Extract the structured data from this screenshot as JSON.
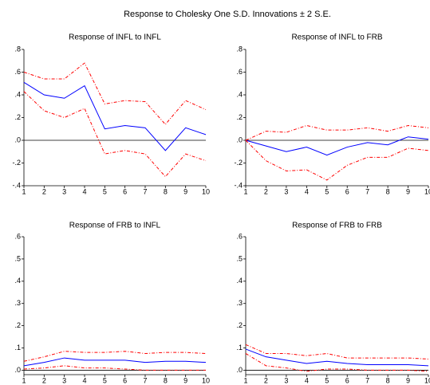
{
  "title": "Response to Cholesky One S.D. Innovations ± 2 S.E.",
  "chart_data": [
    {
      "type": "line",
      "title": "Response of INFL to INFL",
      "x": [
        1,
        2,
        3,
        4,
        5,
        6,
        7,
        8,
        9,
        10
      ],
      "xlim": [
        1,
        10
      ],
      "xticks": [
        1,
        2,
        3,
        4,
        5,
        6,
        7,
        8,
        9,
        10
      ],
      "ylim": [
        -0.4,
        0.8
      ],
      "yticks": [
        {
          "value": -0.4,
          "label": "-.4"
        },
        {
          "value": -0.2,
          "label": "-.2"
        },
        {
          "value": 0,
          "label": ".0"
        },
        {
          "value": 0.2,
          "label": ".2"
        },
        {
          "value": 0.4,
          "label": ".4"
        },
        {
          "value": 0.6,
          "label": ".6"
        },
        {
          "value": 0.8,
          "label": ".8"
        }
      ],
      "zero_line": true,
      "series": [
        {
          "color": "#0000ff",
          "dashed": false,
          "values": [
            0.51,
            0.4,
            0.37,
            0.48,
            0.1,
            0.13,
            0.11,
            -0.09,
            0.11,
            0.05
          ]
        },
        {
          "color": "#ff0000",
          "dashed": true,
          "values": [
            0.6,
            0.54,
            0.54,
            0.68,
            0.32,
            0.35,
            0.34,
            0.14,
            0.35,
            0.27
          ]
        },
        {
          "color": "#ff0000",
          "dashed": true,
          "values": [
            0.43,
            0.26,
            0.2,
            0.28,
            -0.12,
            -0.09,
            -0.12,
            -0.32,
            -0.12,
            -0.18
          ]
        }
      ]
    },
    {
      "type": "line",
      "title": "Response of INFL to FRB",
      "x": [
        1,
        2,
        3,
        4,
        5,
        6,
        7,
        8,
        9,
        10
      ],
      "xlim": [
        1,
        10
      ],
      "xticks": [
        1,
        2,
        3,
        4,
        5,
        6,
        7,
        8,
        9,
        10
      ],
      "ylim": [
        -0.4,
        0.8
      ],
      "yticks": [
        {
          "value": -0.4,
          "label": "-.4"
        },
        {
          "value": -0.2,
          "label": "-.2"
        },
        {
          "value": 0,
          "label": ".0"
        },
        {
          "value": 0.2,
          "label": ".2"
        },
        {
          "value": 0.4,
          "label": ".4"
        },
        {
          "value": 0.6,
          "label": ".6"
        },
        {
          "value": 0.8,
          "label": ".8"
        }
      ],
      "zero_line": true,
      "series": [
        {
          "color": "#0000ff",
          "dashed": false,
          "values": [
            0,
            -0.05,
            -0.1,
            -0.06,
            -0.13,
            -0.06,
            -0.02,
            -0.04,
            0.03,
            0.01
          ]
        },
        {
          "color": "#ff0000",
          "dashed": true,
          "values": [
            0,
            0.08,
            0.07,
            0.13,
            0.09,
            0.09,
            0.11,
            0.08,
            0.13,
            0.11
          ]
        },
        {
          "color": "#ff0000",
          "dashed": true,
          "values": [
            0,
            -0.18,
            -0.27,
            -0.26,
            -0.35,
            -0.22,
            -0.15,
            -0.15,
            -0.07,
            -0.09
          ]
        }
      ]
    },
    {
      "type": "line",
      "title": "Response of FRB to INFL",
      "x": [
        1,
        2,
        3,
        4,
        5,
        6,
        7,
        8,
        9,
        10
      ],
      "xlim": [
        1,
        10
      ],
      "xticks": [
        1,
        2,
        3,
        4,
        5,
        6,
        7,
        8,
        9,
        10
      ],
      "ylim": [
        -0.02,
        0.6
      ],
      "yticks": [
        {
          "value": 0,
          "label": ".0"
        },
        {
          "value": 0.1,
          "label": ".1"
        },
        {
          "value": 0.2,
          "label": ".2"
        },
        {
          "value": 0.3,
          "label": ".3"
        },
        {
          "value": 0.4,
          "label": ".4"
        },
        {
          "value": 0.5,
          "label": ".5"
        },
        {
          "value": 0.6,
          "label": ".6"
        }
      ],
      "zero_line": true,
      "series": [
        {
          "color": "#0000ff",
          "dashed": false,
          "values": [
            0.02,
            0.035,
            0.055,
            0.045,
            0.045,
            0.045,
            0.035,
            0.04,
            0.04,
            0.035
          ]
        },
        {
          "color": "#ff0000",
          "dashed": true,
          "values": [
            0.04,
            0.06,
            0.085,
            0.08,
            0.08,
            0.085,
            0.075,
            0.08,
            0.08,
            0.075
          ]
        },
        {
          "color": "#ff0000",
          "dashed": true,
          "values": [
            0.005,
            0.01,
            0.02,
            0.01,
            0.01,
            0.005,
            0,
            0,
            0,
            0
          ]
        }
      ]
    },
    {
      "type": "line",
      "title": "Response of FRB to FRB",
      "x": [
        1,
        2,
        3,
        4,
        5,
        6,
        7,
        8,
        9,
        10
      ],
      "xlim": [
        1,
        10
      ],
      "xticks": [
        1,
        2,
        3,
        4,
        5,
        6,
        7,
        8,
        9,
        10
      ],
      "ylim": [
        -0.02,
        0.6
      ],
      "yticks": [
        {
          "value": 0,
          "label": ".0"
        },
        {
          "value": 0.1,
          "label": ".1"
        },
        {
          "value": 0.2,
          "label": ".2"
        },
        {
          "value": 0.3,
          "label": ".3"
        },
        {
          "value": 0.4,
          "label": ".4"
        },
        {
          "value": 0.5,
          "label": ".5"
        },
        {
          "value": 0.6,
          "label": ".6"
        }
      ],
      "zero_line": true,
      "series": [
        {
          "color": "#0000ff",
          "dashed": false,
          "values": [
            0.095,
            0.06,
            0.045,
            0.03,
            0.04,
            0.03,
            0.025,
            0.025,
            0.025,
            0.02
          ]
        },
        {
          "color": "#ff0000",
          "dashed": true,
          "values": [
            0.115,
            0.075,
            0.075,
            0.065,
            0.075,
            0.055,
            0.055,
            0.055,
            0.055,
            0.05
          ]
        },
        {
          "color": "#ff0000",
          "dashed": true,
          "values": [
            0.075,
            0.02,
            0.01,
            -0.005,
            0.005,
            0.005,
            0,
            0,
            0,
            -0.005
          ]
        }
      ]
    }
  ]
}
